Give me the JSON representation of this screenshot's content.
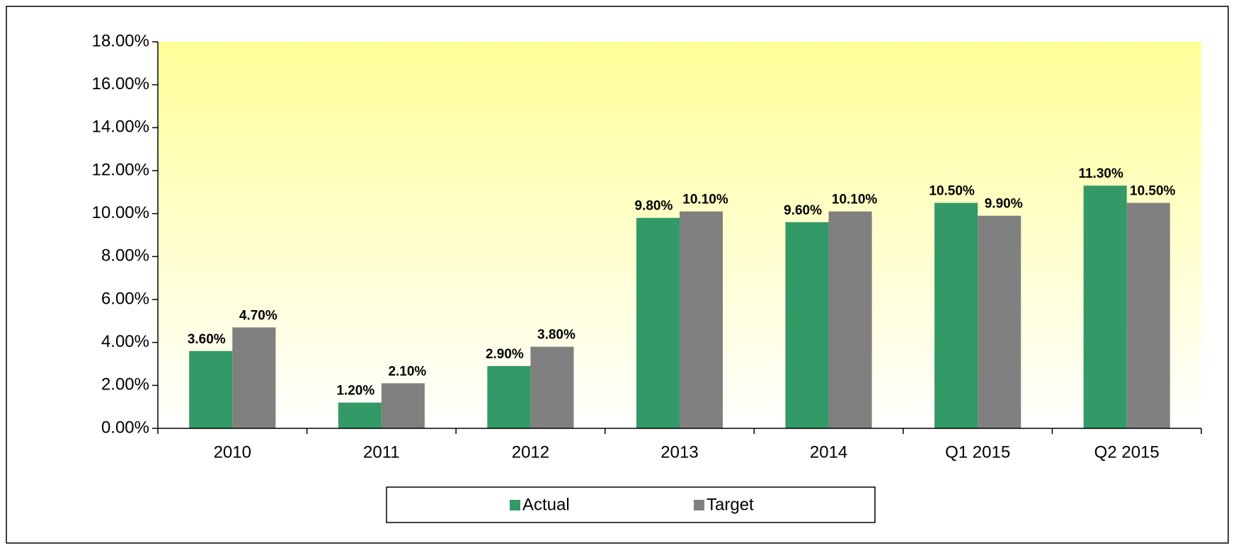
{
  "chart_data": {
    "type": "bar",
    "categories": [
      "2010",
      "2011",
      "2012",
      "2013",
      "2014",
      "Q1 2015",
      "Q2 2015"
    ],
    "series": [
      {
        "name": "Actual",
        "color": "#339966",
        "values": [
          3.6,
          1.2,
          2.9,
          9.8,
          9.6,
          10.5,
          11.3
        ],
        "value_labels": [
          "3.60%",
          "1.20%",
          "2.90%",
          "9.80%",
          "9.60%",
          "10.50%",
          "11.30%"
        ]
      },
      {
        "name": "Target",
        "color": "#808080",
        "values": [
          4.7,
          2.1,
          3.8,
          10.1,
          10.1,
          9.9,
          10.5
        ],
        "value_labels": [
          "4.70%",
          "2.10%",
          "3.80%",
          "10.10%",
          "10.10%",
          "9.90%",
          "10.50%"
        ]
      }
    ],
    "ylim": [
      0,
      18
    ],
    "yticks": [
      {
        "value": 0,
        "label": "0.00%"
      },
      {
        "value": 2,
        "label": "2.00%"
      },
      {
        "value": 4,
        "label": "4.00%"
      },
      {
        "value": 6,
        "label": "6.00%"
      },
      {
        "value": 8,
        "label": "8.00%"
      },
      {
        "value": 10,
        "label": "10.00%"
      },
      {
        "value": 12,
        "label": "12.00%"
      },
      {
        "value": 14,
        "label": "14.00%"
      },
      {
        "value": 16,
        "label": "16.00%"
      },
      {
        "value": 18,
        "label": "18.00%"
      }
    ],
    "legend": "bottom"
  }
}
